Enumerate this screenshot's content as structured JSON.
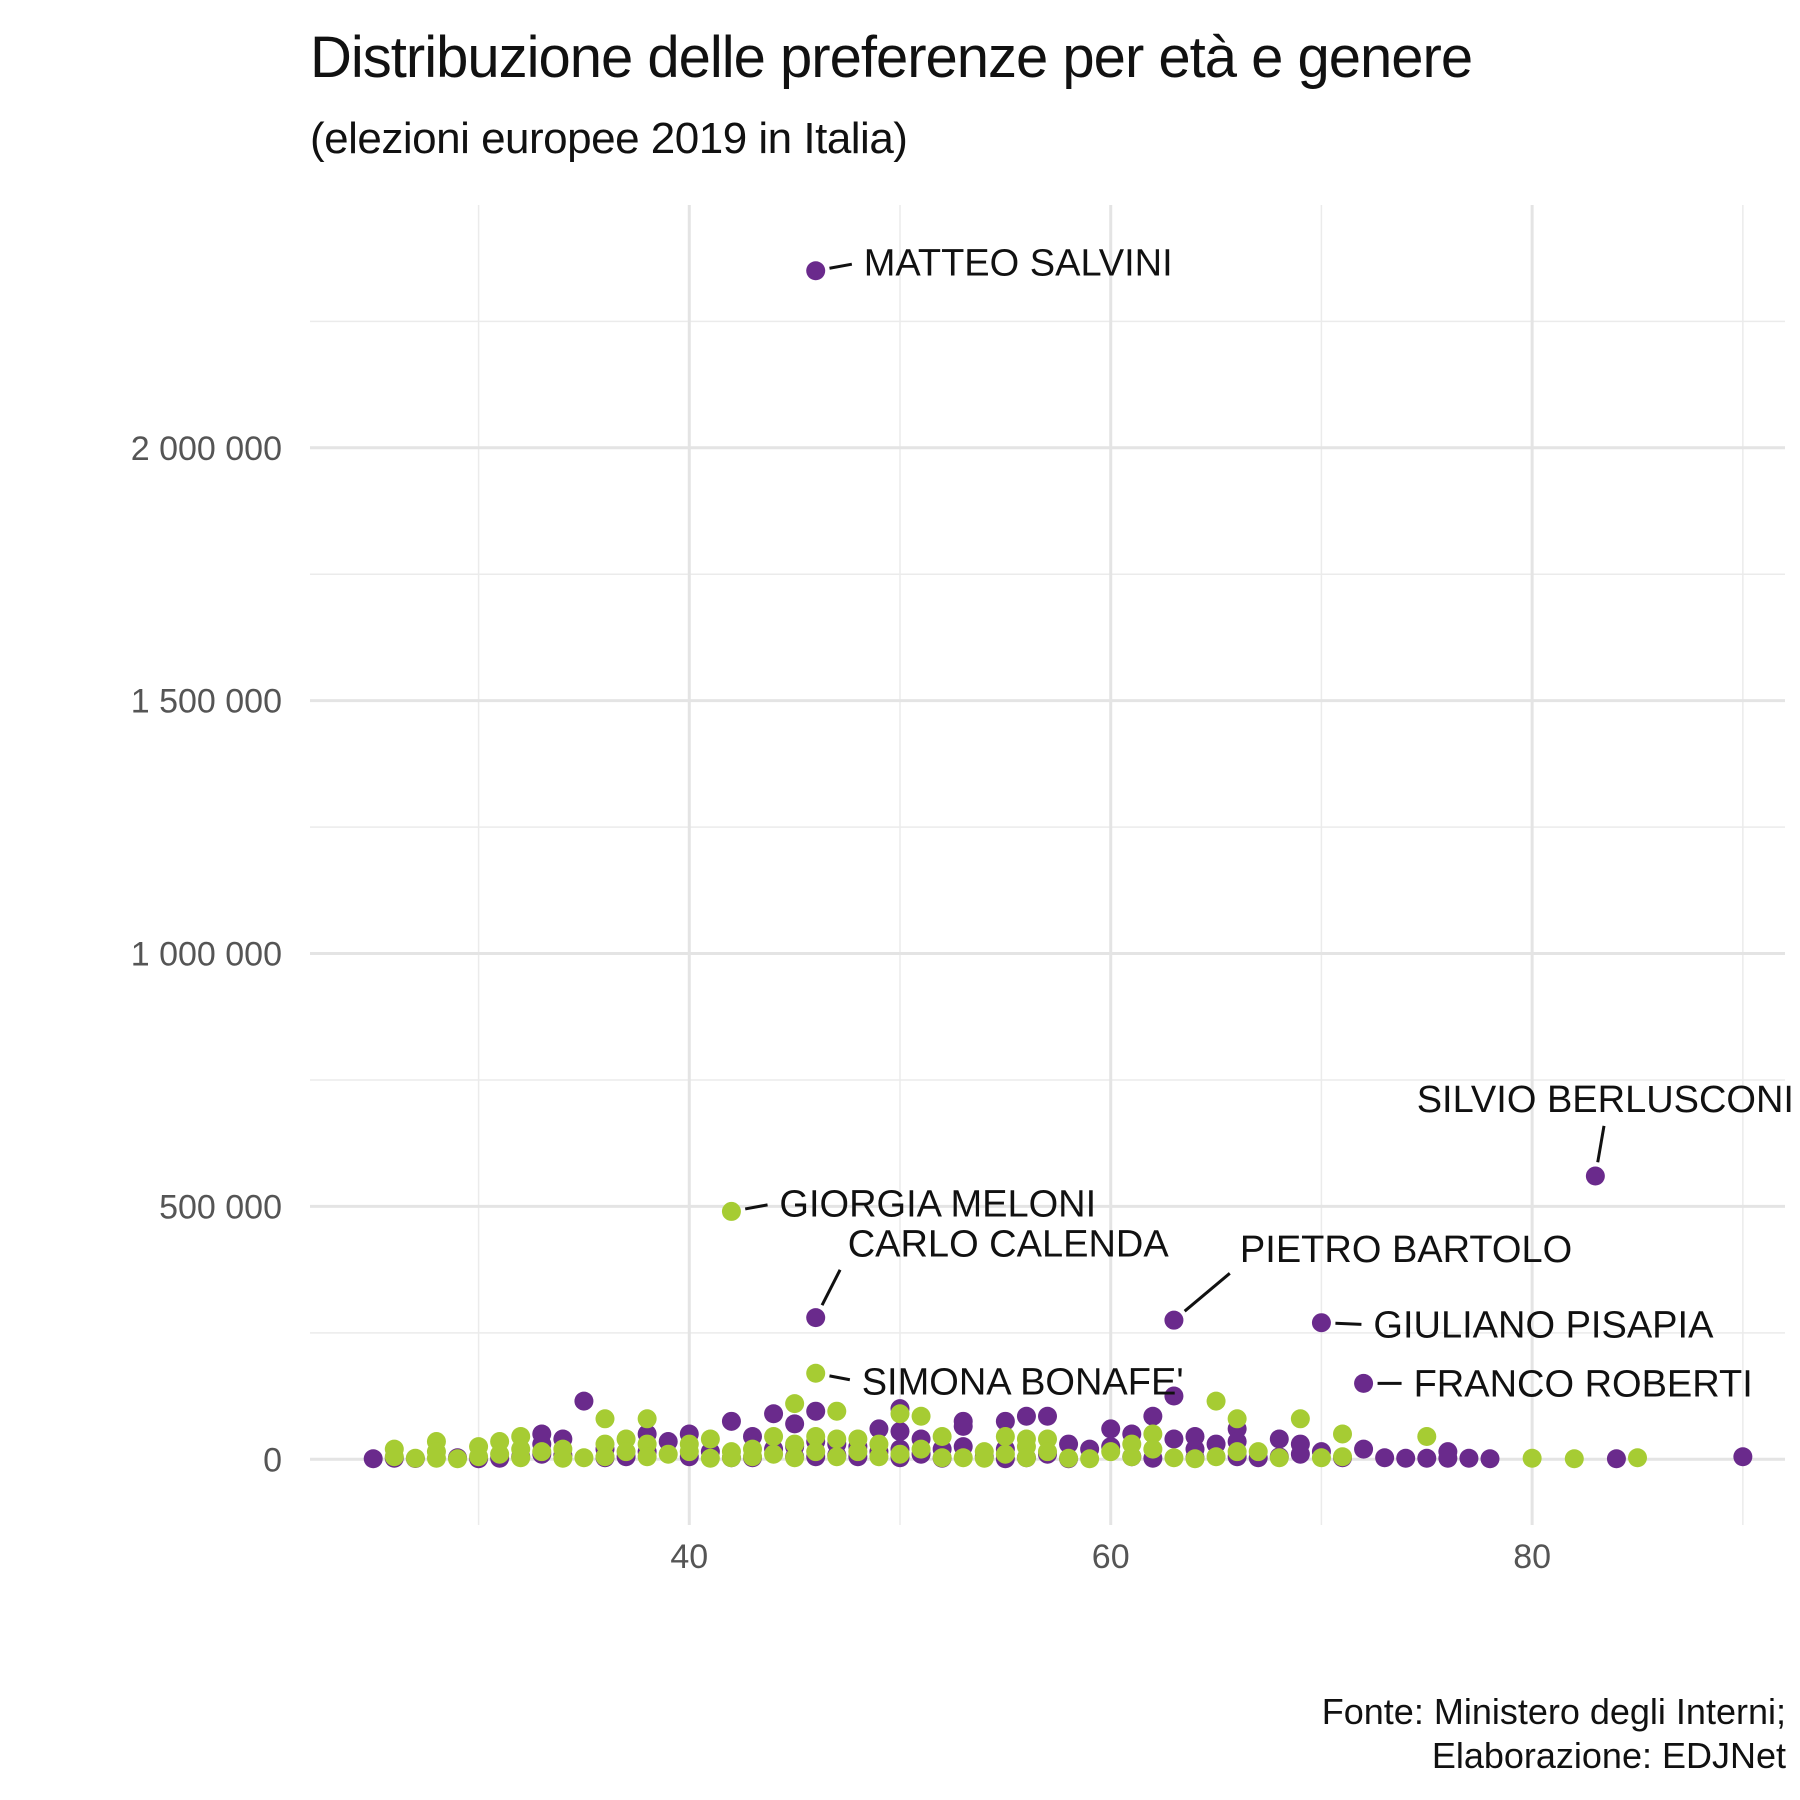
{
  "chart_data": {
    "type": "scatter",
    "title": "Distribuzione delle preferenze per età e genere",
    "subtitle": "(elezioni europee 2019 in Italia)",
    "caption": [
      "Fonte: Ministero degli Interni;",
      "Elaborazione: EDJNet"
    ],
    "xlabel": "",
    "ylabel": "",
    "xlim": [
      22,
      92
    ],
    "ylim": [
      -130000,
      2480000
    ],
    "x_ticks": [
      40,
      60,
      80
    ],
    "x_tick_labels": [
      "40",
      "60",
      "80"
    ],
    "y_ticks": [
      0,
      500000,
      1000000,
      1500000,
      2000000
    ],
    "y_tick_labels": [
      "0",
      "500 000",
      "1 000 000",
      "1 500 000",
      "2 000 000"
    ],
    "grid": true,
    "legend": "none",
    "colors": {
      "purple": "#6a2a8c",
      "green": "#a6cc33"
    },
    "series": [
      {
        "color": "purple",
        "points": [
          [
            25,
            1000
          ],
          [
            26,
            2000
          ],
          [
            27,
            1500
          ],
          [
            29,
            3000
          ],
          [
            30,
            1000
          ],
          [
            31,
            2000
          ],
          [
            32,
            5000
          ],
          [
            33,
            10000
          ],
          [
            33,
            30000
          ],
          [
            33,
            50000
          ],
          [
            34,
            8000
          ],
          [
            34,
            40000
          ],
          [
            35,
            115000
          ],
          [
            36,
            3000
          ],
          [
            36,
            20000
          ],
          [
            37,
            5000
          ],
          [
            38,
            50000
          ],
          [
            38,
            15000
          ],
          [
            39,
            35000
          ],
          [
            40,
            50000
          ],
          [
            40,
            5000
          ],
          [
            41,
            15000
          ],
          [
            42,
            75000
          ],
          [
            42,
            3000
          ],
          [
            43,
            45000
          ],
          [
            44,
            90000
          ],
          [
            44,
            20000
          ],
          [
            45,
            70000
          ],
          [
            45,
            25000
          ],
          [
            45,
            5000
          ],
          [
            46,
            95000
          ],
          [
            46,
            35000
          ],
          [
            46,
            5000
          ],
          [
            46,
            2350000
          ],
          [
            46,
            280000
          ],
          [
            47,
            30000
          ],
          [
            47,
            8000
          ],
          [
            48,
            25000
          ],
          [
            48,
            5000
          ],
          [
            49,
            60000
          ],
          [
            49,
            15000
          ],
          [
            50,
            100000
          ],
          [
            50,
            55000
          ],
          [
            50,
            20000
          ],
          [
            50,
            3000
          ],
          [
            51,
            40000
          ],
          [
            51,
            10000
          ],
          [
            52,
            20000
          ],
          [
            52,
            2000
          ],
          [
            53,
            75000
          ],
          [
            53,
            65000
          ],
          [
            53,
            25000
          ],
          [
            54,
            5000
          ],
          [
            55,
            75000
          ],
          [
            55,
            20000
          ],
          [
            56,
            85000
          ],
          [
            56,
            3000
          ],
          [
            57,
            85000
          ],
          [
            57,
            10000
          ],
          [
            58,
            30000
          ],
          [
            59,
            20000
          ],
          [
            60,
            60000
          ],
          [
            60,
            25000
          ],
          [
            61,
            50000
          ],
          [
            61,
            5000
          ],
          [
            62,
            85000
          ],
          [
            62,
            2000
          ],
          [
            63,
            125000
          ],
          [
            63,
            40000
          ],
          [
            63,
            275000
          ],
          [
            64,
            45000
          ],
          [
            64,
            3000
          ],
          [
            65,
            30000
          ],
          [
            66,
            60000
          ],
          [
            66,
            35000
          ],
          [
            66,
            5000
          ],
          [
            67,
            3000
          ],
          [
            68,
            40000
          ],
          [
            68,
            5000
          ],
          [
            69,
            30000
          ],
          [
            69,
            10000
          ],
          [
            70,
            15000
          ],
          [
            70,
            270000
          ],
          [
            71,
            3000
          ],
          [
            72,
            20000
          ],
          [
            72,
            150000
          ],
          [
            73,
            3000
          ],
          [
            74,
            2000
          ],
          [
            75,
            2000
          ],
          [
            76,
            15000
          ],
          [
            76,
            2000
          ],
          [
            77,
            2000
          ],
          [
            78,
            1000
          ],
          [
            83,
            560000
          ],
          [
            84,
            1000
          ],
          [
            90,
            5000
          ],
          [
            64,
            20000
          ],
          [
            58,
            1000
          ],
          [
            55,
            1000
          ],
          [
            43,
            3000
          ]
        ]
      },
      {
        "color": "green",
        "points": [
          [
            26,
            20000
          ],
          [
            26,
            5000
          ],
          [
            27,
            2000
          ],
          [
            28,
            35000
          ],
          [
            28,
            15000
          ],
          [
            28,
            2000
          ],
          [
            29,
            1000
          ],
          [
            30,
            25000
          ],
          [
            30,
            5000
          ],
          [
            31,
            35000
          ],
          [
            31,
            10000
          ],
          [
            32,
            45000
          ],
          [
            32,
            20000
          ],
          [
            32,
            3000
          ],
          [
            33,
            15000
          ],
          [
            34,
            20000
          ],
          [
            34,
            2000
          ],
          [
            35,
            3000
          ],
          [
            36,
            80000
          ],
          [
            36,
            30000
          ],
          [
            36,
            5000
          ],
          [
            37,
            40000
          ],
          [
            37,
            15000
          ],
          [
            38,
            80000
          ],
          [
            38,
            30000
          ],
          [
            38,
            5000
          ],
          [
            39,
            10000
          ],
          [
            40,
            30000
          ],
          [
            40,
            15000
          ],
          [
            41,
            40000
          ],
          [
            41,
            2000
          ],
          [
            42,
            490000
          ],
          [
            42,
            15000
          ],
          [
            42,
            3000
          ],
          [
            43,
            20000
          ],
          [
            43,
            5000
          ],
          [
            44,
            45000
          ],
          [
            44,
            10000
          ],
          [
            45,
            110000
          ],
          [
            45,
            30000
          ],
          [
            45,
            3000
          ],
          [
            46,
            170000
          ],
          [
            46,
            45000
          ],
          [
            46,
            15000
          ],
          [
            47,
            95000
          ],
          [
            47,
            40000
          ],
          [
            47,
            5000
          ],
          [
            48,
            40000
          ],
          [
            48,
            15000
          ],
          [
            49,
            5000
          ],
          [
            49,
            30000
          ],
          [
            50,
            90000
          ],
          [
            50,
            10000
          ],
          [
            51,
            85000
          ],
          [
            51,
            20000
          ],
          [
            52,
            45000
          ],
          [
            52,
            3000
          ],
          [
            53,
            3000
          ],
          [
            54,
            15000
          ],
          [
            54,
            2000
          ],
          [
            55,
            45000
          ],
          [
            55,
            10000
          ],
          [
            56,
            40000
          ],
          [
            56,
            25000
          ],
          [
            56,
            3000
          ],
          [
            57,
            40000
          ],
          [
            57,
            15000
          ],
          [
            58,
            2000
          ],
          [
            59,
            1000
          ],
          [
            60,
            15000
          ],
          [
            61,
            5000
          ],
          [
            61,
            30000
          ],
          [
            62,
            50000
          ],
          [
            62,
            20000
          ],
          [
            63,
            3000
          ],
          [
            64,
            1000
          ],
          [
            65,
            115000
          ],
          [
            65,
            5000
          ],
          [
            66,
            80000
          ],
          [
            66,
            15000
          ],
          [
            67,
            15000
          ],
          [
            68,
            3000
          ],
          [
            69,
            80000
          ],
          [
            70,
            3000
          ],
          [
            71,
            50000
          ],
          [
            71,
            5000
          ],
          [
            75,
            45000
          ],
          [
            80,
            2000
          ],
          [
            82,
            1000
          ],
          [
            85,
            3000
          ]
        ]
      }
    ],
    "annotations": [
      {
        "label": "MATTEO SALVINI",
        "x": 46,
        "y": 2350000
      },
      {
        "label": "SILVIO BERLUSCONI",
        "x": 83,
        "y": 560000
      },
      {
        "label": "GIORGIA MELONI",
        "x": 42,
        "y": 490000
      },
      {
        "label": "CARLO CALENDA",
        "x": 46,
        "y": 280000
      },
      {
        "label": "PIETRO BARTOLO",
        "x": 63,
        "y": 275000
      },
      {
        "label": "GIULIANO PISAPIA",
        "x": 70,
        "y": 270000
      },
      {
        "label": "FRANCO ROBERTI",
        "x": 72,
        "y": 150000
      },
      {
        "label": "SIMONA BONAFE'",
        "x": 46,
        "y": 170000
      }
    ]
  }
}
